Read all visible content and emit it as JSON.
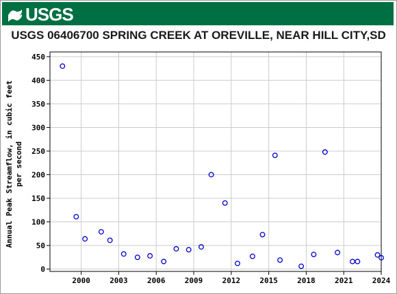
{
  "header": {
    "logo_text": "USGS"
  },
  "chart_data": {
    "type": "scatter",
    "title": "USGS 06406700 SPRING CREEK AT OREVILLE, NEAR HILL CITY,SD",
    "ylabel": "Annual Peak Streamflow, in cubic feet per second",
    "ylabel_lines": [
      "Annual Peak Streamflow, in cubic feet",
      "per second"
    ],
    "xlabel": "",
    "xlim": [
      1997.5,
      2024.0
    ],
    "ylim": [
      -5,
      460
    ],
    "xticks": [
      2000,
      2003,
      2006,
      2009,
      2012,
      2015,
      2018,
      2021,
      2024
    ],
    "yticks": [
      0,
      50,
      100,
      150,
      200,
      250,
      300,
      350,
      400,
      450
    ],
    "grid": true,
    "marker_color": "#0000cc",
    "series": [
      {
        "points": [
          [
            1998.5,
            430
          ],
          [
            1999.6,
            111
          ],
          [
            2000.3,
            64
          ],
          [
            2001.6,
            79
          ],
          [
            2002.3,
            61
          ],
          [
            2003.4,
            32
          ],
          [
            2004.5,
            25
          ],
          [
            2005.5,
            28
          ],
          [
            2006.6,
            16
          ],
          [
            2007.6,
            43
          ],
          [
            2008.6,
            41
          ],
          [
            2009.6,
            47
          ],
          [
            2010.4,
            200
          ],
          [
            2011.5,
            140
          ],
          [
            2012.5,
            12
          ],
          [
            2013.7,
            27
          ],
          [
            2014.5,
            73
          ],
          [
            2015.5,
            241
          ],
          [
            2015.9,
            19
          ],
          [
            2017.6,
            6
          ],
          [
            2018.6,
            31
          ],
          [
            2019.5,
            248
          ],
          [
            2020.5,
            35
          ],
          [
            2021.7,
            16
          ],
          [
            2022.1,
            16
          ],
          [
            2023.7,
            30
          ],
          [
            2024.0,
            24
          ]
        ]
      }
    ]
  }
}
